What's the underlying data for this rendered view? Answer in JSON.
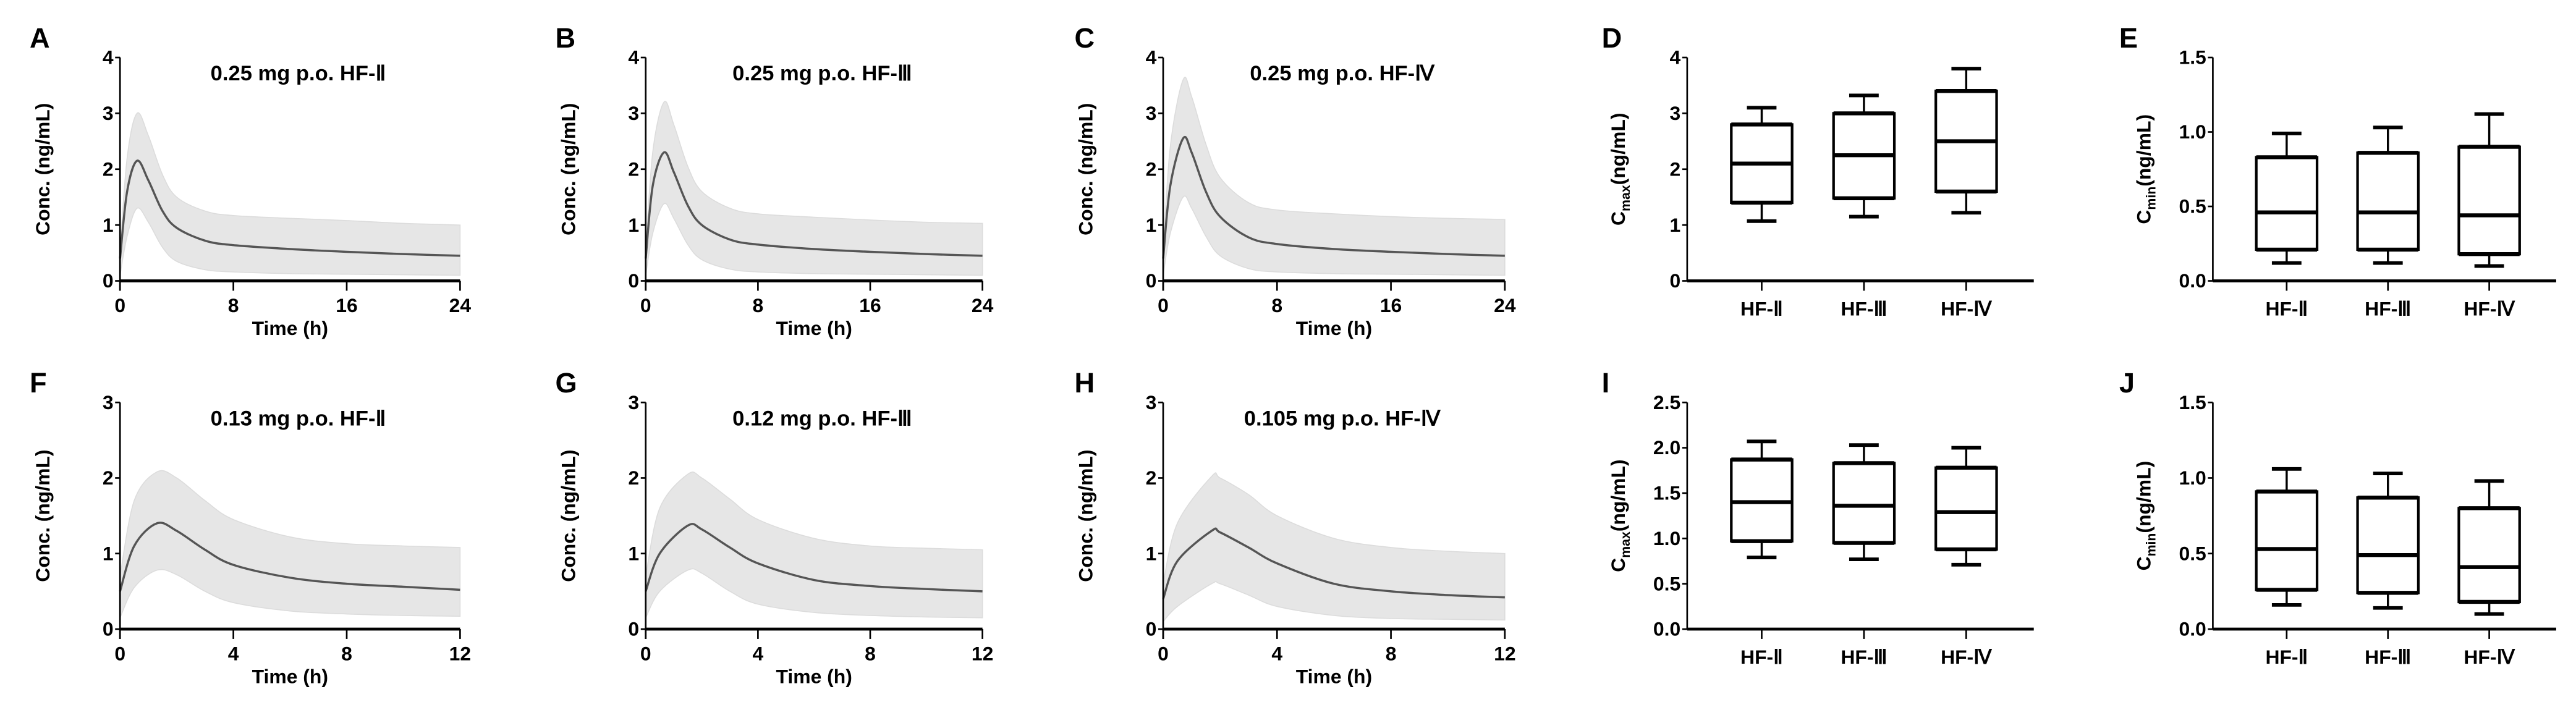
{
  "chart_data": [
    {
      "panel": "A",
      "type": "line",
      "title": "0.25 mg p.o. HF-Ⅱ",
      "xlabel": "Time (h)",
      "ylabel": "Conc. (ng/mL)",
      "xlim": [
        0,
        24
      ],
      "ylim": [
        0,
        4
      ],
      "xticks": [
        0,
        8,
        16,
        24
      ],
      "yticks": [
        0,
        1,
        2,
        3,
        4
      ],
      "x": [
        0,
        0.5,
        1.2,
        2,
        3,
        4,
        6,
        8,
        12,
        16,
        20,
        24
      ],
      "median": [
        0.4,
        1.6,
        2.15,
        1.8,
        1.25,
        0.95,
        0.72,
        0.64,
        0.57,
        0.52,
        0.48,
        0.45
      ],
      "upper": [
        0.5,
        2.2,
        3.0,
        2.6,
        1.9,
        1.5,
        1.25,
        1.17,
        1.12,
        1.08,
        1.03,
        1.0
      ],
      "lower": [
        0.1,
        0.8,
        1.3,
        1.05,
        0.6,
        0.35,
        0.2,
        0.16,
        0.13,
        0.12,
        0.11,
        0.1
      ]
    },
    {
      "panel": "B",
      "type": "line",
      "title": "0.25 mg p.o. HF-Ⅲ",
      "xlabel": "Time (h)",
      "ylabel": "Conc. (ng/mL)",
      "xlim": [
        0,
        24
      ],
      "ylim": [
        0,
        4
      ],
      "xticks": [
        0,
        8,
        16,
        24
      ],
      "yticks": [
        0,
        1,
        2,
        3,
        4
      ],
      "x": [
        0,
        0.5,
        1.3,
        2,
        3,
        4,
        6,
        8,
        12,
        16,
        20,
        24
      ],
      "median": [
        0.4,
        1.7,
        2.3,
        1.95,
        1.35,
        1.0,
        0.74,
        0.65,
        0.57,
        0.52,
        0.48,
        0.45
      ],
      "upper": [
        0.5,
        2.3,
        3.2,
        2.8,
        2.05,
        1.6,
        1.3,
        1.2,
        1.14,
        1.09,
        1.05,
        1.03
      ],
      "lower": [
        0.1,
        0.85,
        1.38,
        1.12,
        0.65,
        0.38,
        0.21,
        0.16,
        0.13,
        0.12,
        0.11,
        0.1
      ]
    },
    {
      "panel": "C",
      "type": "line",
      "title": "0.25 mg p.o. HF-Ⅳ",
      "xlabel": "Time (h)",
      "ylabel": "Conc. (ng/mL)",
      "xlim": [
        0,
        24
      ],
      "ylim": [
        0,
        4
      ],
      "xticks": [
        0,
        8,
        16,
        24
      ],
      "yticks": [
        0,
        1,
        2,
        3,
        4
      ],
      "x": [
        0,
        0.5,
        1.4,
        2,
        3,
        4,
        6,
        8,
        12,
        16,
        20,
        24
      ],
      "median": [
        0.4,
        1.7,
        2.55,
        2.3,
        1.6,
        1.15,
        0.78,
        0.66,
        0.57,
        0.52,
        0.48,
        0.45
      ],
      "upper": [
        0.5,
        2.4,
        3.6,
        3.3,
        2.45,
        1.85,
        1.4,
        1.27,
        1.2,
        1.15,
        1.12,
        1.1
      ],
      "lower": [
        0.1,
        0.85,
        1.5,
        1.3,
        0.8,
        0.45,
        0.22,
        0.16,
        0.13,
        0.12,
        0.11,
        0.1
      ]
    },
    {
      "panel": "D",
      "type": "box",
      "ylabel_main": "C",
      "ylabel_sub": "max",
      "ylabel_unit": "(ng/mL)",
      "ylim": [
        0,
        4
      ],
      "yticks": [
        "0",
        "1",
        "2",
        "3",
        "4"
      ],
      "categories": [
        "HF-Ⅱ",
        "HF-Ⅲ",
        "HF-Ⅳ"
      ],
      "min": [
        1.07,
        1.15,
        1.22
      ],
      "q1": [
        1.4,
        1.48,
        1.6
      ],
      "median": [
        2.1,
        2.25,
        2.5
      ],
      "q3": [
        2.8,
        3.0,
        3.4
      ],
      "max": [
        3.1,
        3.32,
        3.8
      ]
    },
    {
      "panel": "E",
      "type": "box",
      "ylabel_main": "C",
      "ylabel_sub": "min",
      "ylabel_unit": "(ng/mL)",
      "ylim": [
        0,
        1.5
      ],
      "yticks": [
        "0.0",
        "0.5",
        "1.0",
        "1.5"
      ],
      "categories": [
        "HF-Ⅱ",
        "HF-Ⅲ",
        "HF-Ⅳ"
      ],
      "min": [
        0.12,
        0.12,
        0.1
      ],
      "q1": [
        0.21,
        0.21,
        0.18
      ],
      "median": [
        0.46,
        0.46,
        0.44
      ],
      "q3": [
        0.83,
        0.86,
        0.9
      ],
      "max": [
        0.99,
        1.03,
        1.12
      ]
    },
    {
      "panel": "F",
      "type": "line",
      "title": "0.13 mg p.o. HF-Ⅱ",
      "xlabel": "Time (h)",
      "ylabel": "Conc. (ng/mL)",
      "xlim": [
        0,
        12
      ],
      "ylim": [
        0,
        3
      ],
      "xticks": [
        0,
        4,
        8,
        12
      ],
      "yticks": [
        0,
        1,
        2,
        3
      ],
      "x": [
        0,
        0.5,
        1.3,
        2,
        3,
        4,
        6,
        8,
        10,
        12
      ],
      "median": [
        0.5,
        1.1,
        1.4,
        1.3,
        1.05,
        0.85,
        0.68,
        0.6,
        0.56,
        0.52
      ],
      "upper": [
        0.7,
        1.7,
        2.08,
        2.0,
        1.7,
        1.45,
        1.22,
        1.13,
        1.1,
        1.08
      ],
      "lower": [
        0.15,
        0.55,
        0.78,
        0.72,
        0.5,
        0.35,
        0.24,
        0.2,
        0.18,
        0.17
      ]
    },
    {
      "panel": "G",
      "type": "line",
      "title": "0.12 mg p.o. HF-Ⅲ",
      "xlabel": "Time (h)",
      "ylabel": "Conc. (ng/mL)",
      "xlim": [
        0,
        12
      ],
      "ylim": [
        0,
        3
      ],
      "xticks": [
        0,
        4,
        8,
        12
      ],
      "yticks": [
        0,
        1,
        2,
        3
      ],
      "x": [
        0,
        0.5,
        1.5,
        2,
        3,
        4,
        6,
        8,
        10,
        12
      ],
      "median": [
        0.5,
        1.0,
        1.37,
        1.32,
        1.08,
        0.87,
        0.65,
        0.57,
        0.53,
        0.5
      ],
      "upper": [
        0.7,
        1.6,
        2.05,
        2.0,
        1.72,
        1.45,
        1.2,
        1.1,
        1.07,
        1.05
      ],
      "lower": [
        0.15,
        0.5,
        0.78,
        0.74,
        0.5,
        0.33,
        0.22,
        0.18,
        0.16,
        0.15
      ]
    },
    {
      "panel": "H",
      "type": "line",
      "title": "0.105 mg p.o. HF-Ⅳ",
      "xlabel": "Time (h)",
      "ylabel": "Conc. (ng/mL)",
      "xlim": [
        0,
        12
      ],
      "ylim": [
        0,
        3
      ],
      "xticks": [
        0,
        4,
        8,
        12
      ],
      "yticks": [
        0,
        1,
        2,
        3
      ],
      "x": [
        0,
        0.5,
        1.7,
        2,
        3,
        4,
        6,
        8,
        10,
        12
      ],
      "median": [
        0.4,
        0.9,
        1.3,
        1.28,
        1.08,
        0.87,
        0.6,
        0.5,
        0.45,
        0.42
      ],
      "upper": [
        0.6,
        1.4,
        2.02,
        2.0,
        1.78,
        1.5,
        1.2,
        1.08,
        1.03,
        1.0
      ],
      "lower": [
        0.1,
        0.3,
        0.6,
        0.6,
        0.45,
        0.3,
        0.18,
        0.14,
        0.13,
        0.12
      ]
    },
    {
      "panel": "I",
      "type": "box",
      "ylabel_main": "C",
      "ylabel_sub": "max",
      "ylabel_unit": "(ng/mL)",
      "ylim": [
        0,
        2.5
      ],
      "yticks": [
        "0.0",
        "0.5",
        "1.0",
        "1.5",
        "2.0",
        "2.5"
      ],
      "categories": [
        "HF-Ⅱ",
        "HF-Ⅲ",
        "HF-Ⅳ"
      ],
      "min": [
        0.79,
        0.77,
        0.71
      ],
      "q1": [
        0.97,
        0.95,
        0.88
      ],
      "median": [
        1.4,
        1.36,
        1.29
      ],
      "q3": [
        1.87,
        1.83,
        1.78
      ],
      "max": [
        2.07,
        2.03,
        2.0
      ]
    },
    {
      "panel": "J",
      "type": "box",
      "ylabel_main": "C",
      "ylabel_sub": "min",
      "ylabel_unit": "(ng/mL)",
      "ylim": [
        0,
        1.5
      ],
      "yticks": [
        "0.0",
        "0.5",
        "1.0",
        "1.5"
      ],
      "categories": [
        "HF-Ⅱ",
        "HF-Ⅲ",
        "HF-Ⅳ"
      ],
      "min": [
        0.16,
        0.14,
        0.1
      ],
      "q1": [
        0.26,
        0.24,
        0.18
      ],
      "median": [
        0.53,
        0.49,
        0.41
      ],
      "q3": [
        0.91,
        0.87,
        0.8
      ],
      "max": [
        1.06,
        1.03,
        0.98
      ]
    }
  ],
  "colors": {
    "band": "#e6e6e6",
    "median_line": "#555555",
    "axis": "#000000"
  }
}
